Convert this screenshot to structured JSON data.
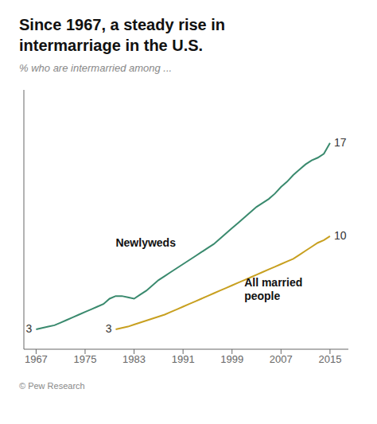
{
  "chart_data": {
    "type": "line",
    "title": "Since 1967, a steady rise in\nintermarriage in the U.S.",
    "subtitle": "% who are intermarried among ...",
    "source": "© Pew Research",
    "x": [
      1967,
      1968,
      1969,
      1970,
      1971,
      1972,
      1973,
      1974,
      1975,
      1976,
      1977,
      1978,
      1979,
      1980,
      1981,
      1982,
      1983,
      1984,
      1985,
      1986,
      1987,
      1988,
      1989,
      1990,
      1991,
      1992,
      1993,
      1994,
      1995,
      1996,
      1997,
      1998,
      1999,
      2000,
      2001,
      2002,
      2003,
      2004,
      2005,
      2006,
      2007,
      2008,
      2009,
      2010,
      2011,
      2012,
      2013,
      2014,
      2015
    ],
    "series": [
      {
        "name": "Newlyweds",
        "color": "#3a8a6e",
        "values": [
          3.0,
          3.1,
          3.2,
          3.3,
          3.5,
          3.7,
          3.9,
          4.1,
          4.3,
          4.5,
          4.7,
          4.9,
          5.3,
          5.5,
          5.5,
          5.4,
          5.3,
          5.6,
          5.9,
          6.3,
          6.7,
          7.0,
          7.3,
          7.6,
          7.9,
          8.2,
          8.5,
          8.8,
          9.1,
          9.4,
          9.8,
          10.2,
          10.6,
          11.0,
          11.4,
          11.8,
          12.2,
          12.5,
          12.8,
          13.2,
          13.7,
          14.1,
          14.6,
          15.0,
          15.4,
          15.7,
          15.9,
          16.2,
          17.0
        ]
      },
      {
        "name": "All married\npeople",
        "color": "#c8a020",
        "values": [
          null,
          null,
          null,
          null,
          null,
          null,
          null,
          null,
          null,
          null,
          null,
          null,
          null,
          3.0,
          3.1,
          3.2,
          3.35,
          3.5,
          3.65,
          3.8,
          3.95,
          4.1,
          4.3,
          4.5,
          4.7,
          4.9,
          5.1,
          5.3,
          5.5,
          5.7,
          5.9,
          6.1,
          6.3,
          6.5,
          6.7,
          6.9,
          7.1,
          7.3,
          7.5,
          7.7,
          7.9,
          8.1,
          8.3,
          8.6,
          8.9,
          9.2,
          9.5,
          9.7,
          10.0
        ]
      }
    ],
    "annotations": [
      {
        "text": "3",
        "x": 1967,
        "y": 3.0
      },
      {
        "text": "17",
        "x": 2015,
        "y": 17.0
      },
      {
        "text": "3",
        "x": 1980,
        "y": 3.0
      },
      {
        "text": "10",
        "x": 2015,
        "y": 10.0
      },
      {
        "text": "Newlyweds",
        "x": 1980,
        "y": 9.8
      },
      {
        "text": "All married\npeople",
        "x": 2001,
        "y": 6.8
      }
    ],
    "xlim": [
      1965,
      2018
    ],
    "xticks": [
      1967,
      1975,
      1983,
      1991,
      1999,
      2007,
      2015
    ],
    "ylim": [
      1.5,
      21
    ],
    "grid": false,
    "tick_labels": "x"
  }
}
